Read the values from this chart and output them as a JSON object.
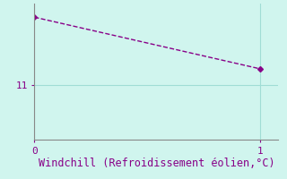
{
  "x": [
    0,
    1
  ],
  "y": [
    13.5,
    11.6
  ],
  "line_color": "#880088",
  "bg_color": "#d0f5ee",
  "grid_color": "#a0ddd5",
  "xlabel": "Windchill (Refroidissement éolien,°C)",
  "xlabel_color": "#880088",
  "xlabel_fontsize": 8.5,
  "ytick_labels": [
    "11"
  ],
  "ytick_values": [
    11
  ],
  "xtick_labels": [
    "0",
    "1"
  ],
  "xtick_values": [
    0,
    1
  ],
  "xlim": [
    0,
    1.08
  ],
  "ylim": [
    9.0,
    14.0
  ],
  "marker": "D",
  "marker_size": 3,
  "line_width": 1.0,
  "line_style": "--",
  "tick_color": "#880088",
  "spine_color": "#888888",
  "tick_fontsize": 8
}
